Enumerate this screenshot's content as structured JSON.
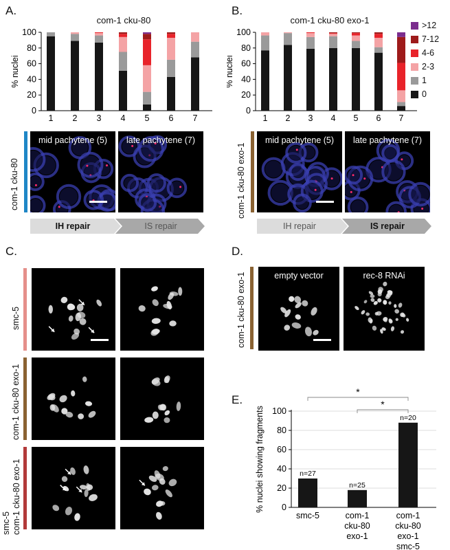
{
  "panels": {
    "A": {
      "letter": "A.",
      "title": "com-1 cku-80",
      "side_label": "com-1 cku-80",
      "side_color": "#1f86c6",
      "micro_labels": [
        "mid pachytene (5)",
        "late pachytene (7)"
      ],
      "repair_labels": [
        "IH repair",
        "IS repair"
      ]
    },
    "B": {
      "letter": "B.",
      "title": "com-1 cku-80 exo-1",
      "side_label": "com-1 cku-80 exo-1",
      "side_color": "#8a6232",
      "micro_labels": [
        "mid pachytene (5)",
        "late pachytene (7)"
      ],
      "repair_labels": [
        "IH repair",
        "IS repair"
      ]
    },
    "C": {
      "letter": "C.",
      "rows": [
        {
          "label": "smc-5",
          "color": "#e58f8a"
        },
        {
          "label": "com-1 cku-80 exo-1",
          "color": "#8a6232"
        },
        {
          "label_line1": "smc-5",
          "label_line2": "com-1 cku-80 exo-1",
          "color": "#b23a3a"
        }
      ]
    },
    "D": {
      "letter": "D.",
      "side_label": "com-1 cku-80 exo-1",
      "side_color": "#8a6232",
      "micro_labels": [
        "empty vector",
        "rec-8 RNAi"
      ]
    },
    "E": {
      "letter": "E."
    }
  },
  "legend": [
    {
      "label": ">12",
      "color": "#7b2d8e"
    },
    {
      "label": "7-12",
      "color": "#9e1b1b"
    },
    {
      "label": "4-6",
      "color": "#e8232a"
    },
    {
      "label": "2-3",
      "color": "#f4a3a5"
    },
    {
      "label": "1",
      "color": "#9a9a9a"
    },
    {
      "label": "0",
      "color": "#161616"
    }
  ],
  "chart_data": [
    {
      "type": "bar",
      "stacked": true,
      "title": "com-1 cku-80",
      "ylabel": "% nuclei",
      "ylim": [
        0,
        100
      ],
      "yticks": [
        0,
        20,
        40,
        60,
        80,
        100
      ],
      "categories": [
        "1",
        "2",
        "3",
        "4",
        "5",
        "6",
        "7"
      ],
      "series": [
        {
          "name": "0",
          "values": [
            95,
            89,
            87,
            51,
            8,
            43,
            68
          ]
        },
        {
          "name": "1",
          "values": [
            5,
            9,
            9,
            24,
            16,
            22,
            20
          ]
        },
        {
          "name": "2-3",
          "values": [
            0,
            2,
            3,
            19,
            34,
            28,
            12
          ]
        },
        {
          "name": "4-6",
          "values": [
            0,
            0,
            1,
            4,
            33,
            5,
            0
          ]
        },
        {
          "name": "7-12",
          "values": [
            0,
            0,
            0,
            2,
            7,
            2,
            0
          ]
        },
        {
          "name": ">12",
          "values": [
            0,
            0,
            0,
            0,
            2,
            0,
            0
          ]
        }
      ]
    },
    {
      "type": "bar",
      "stacked": true,
      "title": "com-1 cku-80 exo-1",
      "ylabel": "% nuclei",
      "ylim": [
        0,
        100
      ],
      "yticks": [
        0,
        20,
        40,
        60,
        80,
        100
      ],
      "categories": [
        "1",
        "2",
        "3",
        "4",
        "5",
        "6",
        "7"
      ],
      "series": [
        {
          "name": "0",
          "values": [
            77,
            84,
            79,
            80,
            80,
            74,
            6
          ]
        },
        {
          "name": "1",
          "values": [
            19,
            15,
            15,
            15,
            9,
            7,
            5
          ]
        },
        {
          "name": "2-3",
          "values": [
            4,
            1,
            5,
            3,
            7,
            12,
            15
          ]
        },
        {
          "name": "4-6",
          "values": [
            0,
            0,
            1,
            1,
            3,
            5,
            35
          ]
        },
        {
          "name": "7-12",
          "values": [
            0,
            0,
            0,
            1,
            1,
            2,
            33
          ]
        },
        {
          "name": ">12",
          "values": [
            0,
            0,
            0,
            0,
            0,
            0,
            6
          ]
        }
      ]
    },
    {
      "type": "bar",
      "ylabel": "% nuclei  showing fragments",
      "ylim": [
        0,
        100
      ],
      "yticks": [
        0,
        20,
        40,
        60,
        80,
        100
      ],
      "categories": [
        "smc-5",
        "com-1 cku-80 exo-1",
        "com-1 cku-80 exo-1 smc-5"
      ],
      "category_lines": [
        [
          "smc-5"
        ],
        [
          "com-1",
          "cku-80",
          "exo-1"
        ],
        [
          "com-1",
          "cku-80",
          "exo-1",
          "smc-5"
        ]
      ],
      "values": [
        30,
        18,
        88
      ],
      "annotations": [
        "n=27",
        "n=25",
        "n=20"
      ],
      "significance": [
        {
          "from": 0,
          "to": 2,
          "label": "*"
        },
        {
          "from": 1,
          "to": 2,
          "label": "*"
        }
      ]
    }
  ]
}
